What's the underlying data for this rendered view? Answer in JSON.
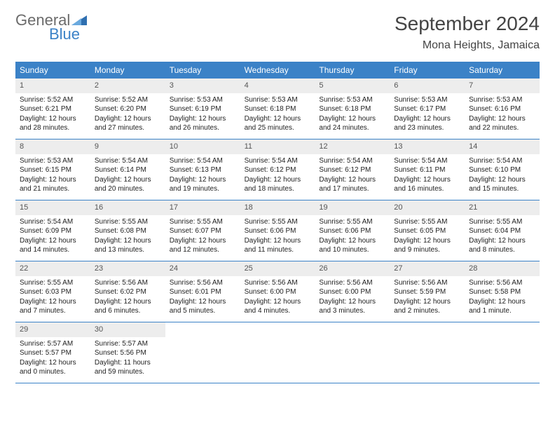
{
  "logo": {
    "text1": "General",
    "text2": "Blue"
  },
  "title": "September 2024",
  "location": "Mona Heights, Jamaica",
  "colors": {
    "header_bg": "#3b82c7",
    "header_text": "#ffffff",
    "daynum_bg": "#ededed",
    "divider": "#3b82c7",
    "body_text": "#222222",
    "logo_gray": "#6b6b6b",
    "logo_blue": "#3b82c7"
  },
  "weekdays": [
    "Sunday",
    "Monday",
    "Tuesday",
    "Wednesday",
    "Thursday",
    "Friday",
    "Saturday"
  ],
  "weeks": [
    [
      {
        "n": "1",
        "sr": "5:52 AM",
        "ss": "6:21 PM",
        "dl": "12 hours and 28 minutes."
      },
      {
        "n": "2",
        "sr": "5:52 AM",
        "ss": "6:20 PM",
        "dl": "12 hours and 27 minutes."
      },
      {
        "n": "3",
        "sr": "5:53 AM",
        "ss": "6:19 PM",
        "dl": "12 hours and 26 minutes."
      },
      {
        "n": "4",
        "sr": "5:53 AM",
        "ss": "6:18 PM",
        "dl": "12 hours and 25 minutes."
      },
      {
        "n": "5",
        "sr": "5:53 AM",
        "ss": "6:18 PM",
        "dl": "12 hours and 24 minutes."
      },
      {
        "n": "6",
        "sr": "5:53 AM",
        "ss": "6:17 PM",
        "dl": "12 hours and 23 minutes."
      },
      {
        "n": "7",
        "sr": "5:53 AM",
        "ss": "6:16 PM",
        "dl": "12 hours and 22 minutes."
      }
    ],
    [
      {
        "n": "8",
        "sr": "5:53 AM",
        "ss": "6:15 PM",
        "dl": "12 hours and 21 minutes."
      },
      {
        "n": "9",
        "sr": "5:54 AM",
        "ss": "6:14 PM",
        "dl": "12 hours and 20 minutes."
      },
      {
        "n": "10",
        "sr": "5:54 AM",
        "ss": "6:13 PM",
        "dl": "12 hours and 19 minutes."
      },
      {
        "n": "11",
        "sr": "5:54 AM",
        "ss": "6:12 PM",
        "dl": "12 hours and 18 minutes."
      },
      {
        "n": "12",
        "sr": "5:54 AM",
        "ss": "6:12 PM",
        "dl": "12 hours and 17 minutes."
      },
      {
        "n": "13",
        "sr": "5:54 AM",
        "ss": "6:11 PM",
        "dl": "12 hours and 16 minutes."
      },
      {
        "n": "14",
        "sr": "5:54 AM",
        "ss": "6:10 PM",
        "dl": "12 hours and 15 minutes."
      }
    ],
    [
      {
        "n": "15",
        "sr": "5:54 AM",
        "ss": "6:09 PM",
        "dl": "12 hours and 14 minutes."
      },
      {
        "n": "16",
        "sr": "5:55 AM",
        "ss": "6:08 PM",
        "dl": "12 hours and 13 minutes."
      },
      {
        "n": "17",
        "sr": "5:55 AM",
        "ss": "6:07 PM",
        "dl": "12 hours and 12 minutes."
      },
      {
        "n": "18",
        "sr": "5:55 AM",
        "ss": "6:06 PM",
        "dl": "12 hours and 11 minutes."
      },
      {
        "n": "19",
        "sr": "5:55 AM",
        "ss": "6:06 PM",
        "dl": "12 hours and 10 minutes."
      },
      {
        "n": "20",
        "sr": "5:55 AM",
        "ss": "6:05 PM",
        "dl": "12 hours and 9 minutes."
      },
      {
        "n": "21",
        "sr": "5:55 AM",
        "ss": "6:04 PM",
        "dl": "12 hours and 8 minutes."
      }
    ],
    [
      {
        "n": "22",
        "sr": "5:55 AM",
        "ss": "6:03 PM",
        "dl": "12 hours and 7 minutes."
      },
      {
        "n": "23",
        "sr": "5:56 AM",
        "ss": "6:02 PM",
        "dl": "12 hours and 6 minutes."
      },
      {
        "n": "24",
        "sr": "5:56 AM",
        "ss": "6:01 PM",
        "dl": "12 hours and 5 minutes."
      },
      {
        "n": "25",
        "sr": "5:56 AM",
        "ss": "6:00 PM",
        "dl": "12 hours and 4 minutes."
      },
      {
        "n": "26",
        "sr": "5:56 AM",
        "ss": "6:00 PM",
        "dl": "12 hours and 3 minutes."
      },
      {
        "n": "27",
        "sr": "5:56 AM",
        "ss": "5:59 PM",
        "dl": "12 hours and 2 minutes."
      },
      {
        "n": "28",
        "sr": "5:56 AM",
        "ss": "5:58 PM",
        "dl": "12 hours and 1 minute."
      }
    ],
    [
      {
        "n": "29",
        "sr": "5:57 AM",
        "ss": "5:57 PM",
        "dl": "12 hours and 0 minutes."
      },
      {
        "n": "30",
        "sr": "5:57 AM",
        "ss": "5:56 PM",
        "dl": "11 hours and 59 minutes."
      },
      null,
      null,
      null,
      null,
      null
    ]
  ],
  "labels": {
    "sunrise": "Sunrise:",
    "sunset": "Sunset:",
    "daylight": "Daylight:"
  }
}
